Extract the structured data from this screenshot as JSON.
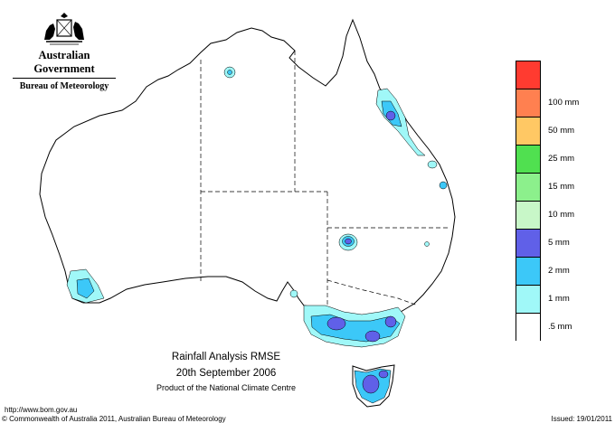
{
  "agency": {
    "government": "Australian Government",
    "bureau": "Bureau of Meteorology"
  },
  "caption": {
    "title": "Rainfall Analysis RMSE",
    "date": "20th  September  2006",
    "product": "Product of the National Climate Centre"
  },
  "legend": {
    "items": [
      {
        "label": "",
        "color": "#ff3b30"
      },
      {
        "label": "100 mm",
        "color": "#ff8050"
      },
      {
        "label": "50 mm",
        "color": "#ffc864"
      },
      {
        "label": "25 mm",
        "color": "#50e050"
      },
      {
        "label": "15 mm",
        "color": "#8cf08c"
      },
      {
        "label": "10 mm",
        "color": "#c8f7c8"
      },
      {
        "label": "5 mm",
        "color": "#6060e8"
      },
      {
        "label": "2 mm",
        "color": "#3cc8f8"
      },
      {
        "label": "1 mm",
        "color": "#a0f8f8"
      },
      {
        "label": ".5 mm",
        "color": "#ffffff"
      }
    ]
  },
  "footer": {
    "url": "http://www.bom.gov.au",
    "copyright": "© Commonwealth of Australia 2011, Australian Bureau of Meteorology",
    "issued": "Issued: 19/01/2011"
  }
}
